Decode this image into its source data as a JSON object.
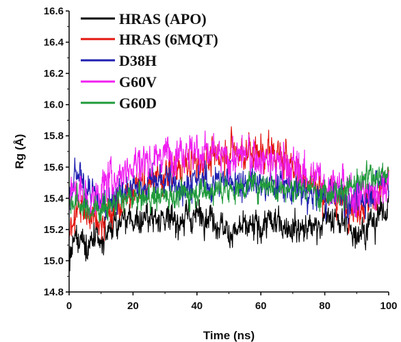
{
  "chart_data": {
    "type": "line",
    "xlabel": "Time (ns)",
    "ylabel": "Rg (Å)",
    "xlim": [
      0,
      100
    ],
    "ylim": [
      14.8,
      16.6
    ],
    "xticks": [
      0,
      20,
      40,
      60,
      80,
      100
    ],
    "yticks": [
      14.8,
      15.0,
      15.2,
      15.4,
      15.6,
      15.8,
      16.0,
      16.2,
      16.4,
      16.6
    ],
    "xtick_labels": [
      "0",
      "20",
      "40",
      "60",
      "80",
      "100"
    ],
    "ytick_labels": [
      "14.8",
      "15.0",
      "15.2",
      "15.4",
      "15.6",
      "15.8",
      "16.0",
      "16.2",
      "16.4",
      "16.6"
    ],
    "legend_position": "top-left",
    "grid": false,
    "series": [
      {
        "name": "HRAS (APO)",
        "color": "#000000",
        "x": [
          0,
          2,
          4,
          6,
          8,
          10,
          12,
          15,
          20,
          25,
          30,
          35,
          40,
          45,
          50,
          55,
          60,
          65,
          70,
          75,
          80,
          85,
          90,
          95,
          100
        ],
        "y": [
          15.0,
          15.12,
          15.15,
          15.1,
          15.12,
          15.08,
          15.2,
          15.25,
          15.25,
          15.28,
          15.28,
          15.25,
          15.3,
          15.28,
          15.18,
          15.2,
          15.22,
          15.25,
          15.22,
          15.2,
          15.27,
          15.25,
          15.18,
          15.25,
          15.35
        ]
      },
      {
        "name": "HRAS (6MQT)",
        "color": "#e3160f",
        "x": [
          0,
          2,
          4,
          6,
          8,
          10,
          12,
          15,
          20,
          25,
          30,
          35,
          40,
          45,
          50,
          55,
          60,
          65,
          70,
          75,
          80,
          85,
          90,
          95,
          100
        ],
        "y": [
          15.2,
          15.3,
          15.35,
          15.3,
          15.3,
          15.25,
          15.3,
          15.35,
          15.45,
          15.5,
          15.55,
          15.6,
          15.62,
          15.65,
          15.7,
          15.7,
          15.7,
          15.68,
          15.6,
          15.5,
          15.45,
          15.4,
          15.35,
          15.4,
          15.5
        ]
      },
      {
        "name": "D38H",
        "color": "#1f1fb0",
        "x": [
          0,
          2,
          4,
          6,
          8,
          10,
          12,
          15,
          20,
          25,
          30,
          35,
          40,
          45,
          50,
          55,
          60,
          65,
          70,
          75,
          80,
          85,
          90,
          95,
          100
        ],
        "y": [
          15.3,
          15.55,
          15.5,
          15.45,
          15.4,
          15.35,
          15.38,
          15.42,
          15.45,
          15.5,
          15.52,
          15.48,
          15.5,
          15.5,
          15.52,
          15.5,
          15.48,
          15.5,
          15.45,
          15.42,
          15.4,
          15.42,
          15.35,
          15.45,
          15.55
        ]
      },
      {
        "name": "G60V",
        "color": "#f01ff0",
        "x": [
          0,
          2,
          4,
          6,
          8,
          10,
          12,
          15,
          20,
          25,
          30,
          35,
          40,
          45,
          50,
          55,
          60,
          65,
          70,
          75,
          80,
          85,
          90,
          95,
          100
        ],
        "y": [
          15.4,
          15.45,
          15.42,
          15.4,
          15.38,
          15.45,
          15.5,
          15.55,
          15.62,
          15.65,
          15.68,
          15.72,
          15.7,
          15.68,
          15.65,
          15.68,
          15.65,
          15.62,
          15.6,
          15.55,
          15.5,
          15.48,
          15.42,
          15.45,
          15.5
        ]
      },
      {
        "name": "G60D",
        "color": "#1f9a3a",
        "x": [
          0,
          2,
          4,
          6,
          8,
          10,
          12,
          15,
          20,
          25,
          30,
          35,
          40,
          45,
          50,
          55,
          60,
          65,
          70,
          75,
          80,
          85,
          90,
          95,
          100
        ],
        "y": [
          15.35,
          15.38,
          15.35,
          15.32,
          15.33,
          15.35,
          15.35,
          15.38,
          15.4,
          15.4,
          15.42,
          15.42,
          15.45,
          15.45,
          15.45,
          15.48,
          15.5,
          15.48,
          15.45,
          15.45,
          15.45,
          15.45,
          15.48,
          15.55,
          15.55
        ]
      }
    ]
  }
}
